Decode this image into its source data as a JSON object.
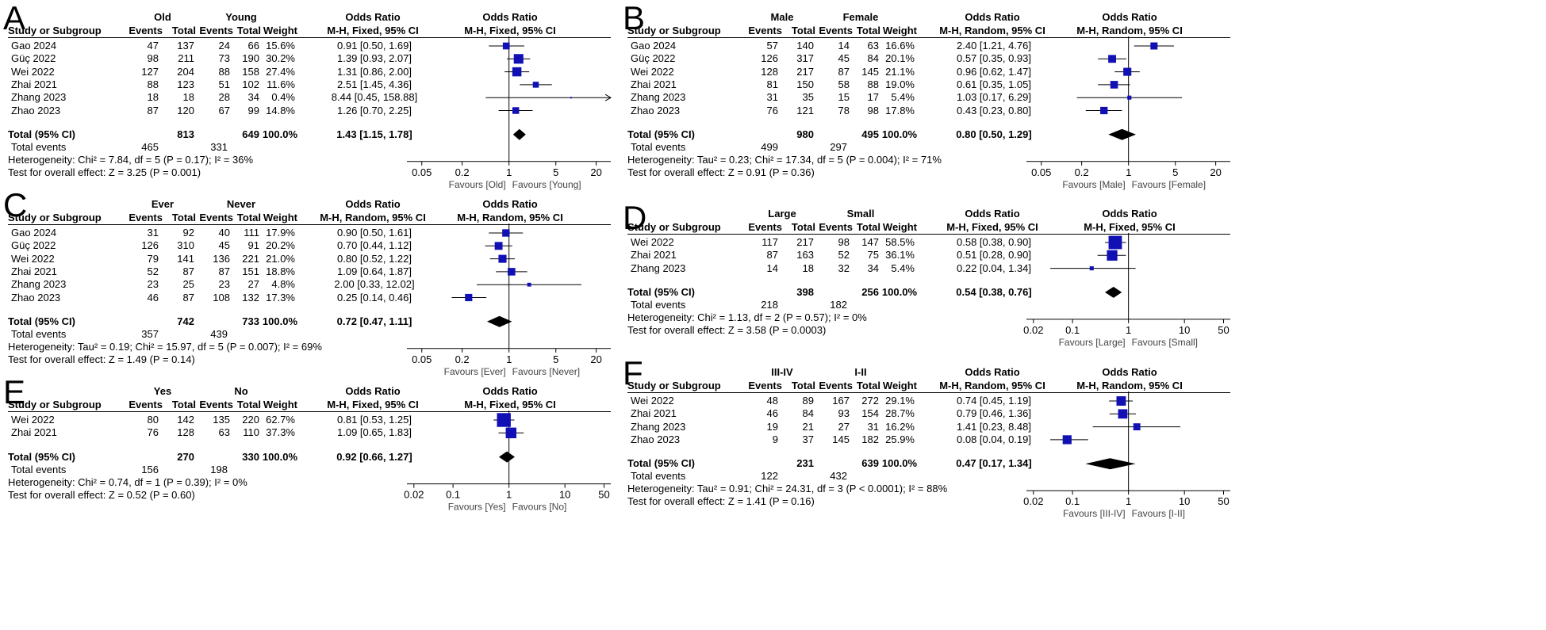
{
  "headers": {
    "study": "Study or Subgroup",
    "events": "Events",
    "total": "Total",
    "weight": "Weight",
    "or": "Odds Ratio",
    "total_ci": "Total (95% CI)",
    "total_events": "Total events"
  },
  "chart_data": [
    {
      "label": "A",
      "type": "forest",
      "group1": "Old",
      "group2": "Young",
      "method": "M-H, Fixed, 95% CI",
      "studies": [
        {
          "name": "Gao 2024",
          "e1": "47",
          "n1": "137",
          "e2": "24",
          "n2": "66",
          "weight": "15.6%",
          "or": 0.91,
          "lo": 0.5,
          "hi": 1.69,
          "ci": "0.91 [0.50, 1.69]"
        },
        {
          "name": "Güç 2022",
          "e1": "98",
          "n1": "211",
          "e2": "73",
          "n2": "190",
          "weight": "30.2%",
          "or": 1.39,
          "lo": 0.93,
          "hi": 2.07,
          "ci": "1.39 [0.93, 2.07]"
        },
        {
          "name": "Wei 2022",
          "e1": "127",
          "n1": "204",
          "e2": "88",
          "n2": "158",
          "weight": "27.4%",
          "or": 1.31,
          "lo": 0.86,
          "hi": 2.0,
          "ci": "1.31 [0.86, 2.00]"
        },
        {
          "name": "Zhai 2021",
          "e1": "88",
          "n1": "123",
          "e2": "51",
          "n2": "102",
          "weight": "11.6%",
          "or": 2.51,
          "lo": 1.45,
          "hi": 4.36,
          "ci": "2.51 [1.45, 4.36]"
        },
        {
          "name": "Zhang 2023",
          "e1": "18",
          "n1": "18",
          "e2": "28",
          "n2": "34",
          "weight": "0.4%",
          "or": 8.44,
          "lo": 0.45,
          "hi": 158.88,
          "ci": "8.44 [0.45, 158.88]"
        },
        {
          "name": "Zhao 2023",
          "e1": "87",
          "n1": "120",
          "e2": "67",
          "n2": "99",
          "weight": "14.8%",
          "or": 1.26,
          "lo": 0.7,
          "hi": 2.25,
          "ci": "1.26 [0.70, 2.25]"
        }
      ],
      "total": {
        "n1": "813",
        "n2": "649",
        "weight": "100.0%",
        "or": 1.43,
        "lo": 1.15,
        "hi": 1.78,
        "ci": "1.43 [1.15, 1.78]"
      },
      "total_events": {
        "e1": "465",
        "e2": "331"
      },
      "heterogeneity": "Heterogeneity: Chi² = 7.84, df = 5 (P = 0.17); I² = 36%",
      "overall": "Test for overall effect: Z = 3.25 (P = 0.001)",
      "ticks": [
        0.05,
        0.2,
        1,
        5,
        20
      ],
      "tick_labels": [
        "0.05",
        "0.2",
        "1",
        "5",
        "20"
      ],
      "xlim": [
        0.03,
        33
      ],
      "favours_left": "Favours [Old]",
      "favours_right": "Favours [Young]"
    },
    {
      "label": "B",
      "type": "forest",
      "group1": "Male",
      "group2": "Female",
      "method": "M-H, Random, 95% CI",
      "studies": [
        {
          "name": "Gao 2024",
          "e1": "57",
          "n1": "140",
          "e2": "14",
          "n2": "63",
          "weight": "16.6%",
          "or": 2.4,
          "lo": 1.21,
          "hi": 4.76,
          "ci": "2.40 [1.21, 4.76]"
        },
        {
          "name": "Güç 2022",
          "e1": "126",
          "n1": "317",
          "e2": "45",
          "n2": "84",
          "weight": "20.1%",
          "or": 0.57,
          "lo": 0.35,
          "hi": 0.93,
          "ci": "0.57 [0.35, 0.93]"
        },
        {
          "name": "Wei 2022",
          "e1": "128",
          "n1": "217",
          "e2": "87",
          "n2": "145",
          "weight": "21.1%",
          "or": 0.96,
          "lo": 0.62,
          "hi": 1.47,
          "ci": "0.96 [0.62, 1.47]"
        },
        {
          "name": "Zhai 2021",
          "e1": "81",
          "n1": "150",
          "e2": "58",
          "n2": "88",
          "weight": "19.0%",
          "or": 0.61,
          "lo": 0.35,
          "hi": 1.05,
          "ci": "0.61 [0.35, 1.05]"
        },
        {
          "name": "Zhang 2023",
          "e1": "31",
          "n1": "35",
          "e2": "15",
          "n2": "17",
          "weight": "5.4%",
          "or": 1.03,
          "lo": 0.17,
          "hi": 6.29,
          "ci": "1.03 [0.17, 6.29]"
        },
        {
          "name": "Zhao 2023",
          "e1": "76",
          "n1": "121",
          "e2": "78",
          "n2": "98",
          "weight": "17.8%",
          "or": 0.43,
          "lo": 0.23,
          "hi": 0.8,
          "ci": "0.43 [0.23, 0.80]"
        }
      ],
      "total": {
        "n1": "980",
        "n2": "495",
        "weight": "100.0%",
        "or": 0.8,
        "lo": 0.5,
        "hi": 1.29,
        "ci": "0.80 [0.50, 1.29]"
      },
      "total_events": {
        "e1": "499",
        "e2": "297"
      },
      "heterogeneity": "Heterogeneity: Tau² = 0.23; Chi² = 17.34, df = 5 (P = 0.004); I² = 71%",
      "overall": "Test for overall effect: Z = 0.91 (P = 0.36)",
      "ticks": [
        0.05,
        0.2,
        1,
        5,
        20
      ],
      "tick_labels": [
        "0.05",
        "0.2",
        "1",
        "5",
        "20"
      ],
      "xlim": [
        0.03,
        33
      ],
      "favours_left": "Favours [Male]",
      "favours_right": "Favours [Female]"
    },
    {
      "label": "C",
      "type": "forest",
      "group1": "Ever",
      "group2": "Never",
      "method": "M-H, Random, 95% CI",
      "studies": [
        {
          "name": "Gao 2024",
          "e1": "31",
          "n1": "92",
          "e2": "40",
          "n2": "111",
          "weight": "17.9%",
          "or": 0.9,
          "lo": 0.5,
          "hi": 1.61,
          "ci": "0.90 [0.50, 1.61]"
        },
        {
          "name": "Güç 2022",
          "e1": "126",
          "n1": "310",
          "e2": "45",
          "n2": "91",
          "weight": "20.2%",
          "or": 0.7,
          "lo": 0.44,
          "hi": 1.12,
          "ci": "0.70 [0.44, 1.12]"
        },
        {
          "name": "Wei 2022",
          "e1": "79",
          "n1": "141",
          "e2": "136",
          "n2": "221",
          "weight": "21.0%",
          "or": 0.8,
          "lo": 0.52,
          "hi": 1.22,
          "ci": "0.80 [0.52, 1.22]"
        },
        {
          "name": "Zhai 2021",
          "e1": "52",
          "n1": "87",
          "e2": "87",
          "n2": "151",
          "weight": "18.8%",
          "or": 1.09,
          "lo": 0.64,
          "hi": 1.87,
          "ci": "1.09 [0.64, 1.87]"
        },
        {
          "name": "Zhang 2023",
          "e1": "23",
          "n1": "25",
          "e2": "23",
          "n2": "27",
          "weight": "4.8%",
          "or": 2.0,
          "lo": 0.33,
          "hi": 12.02,
          "ci": "2.00 [0.33, 12.02]"
        },
        {
          "name": "Zhao 2023",
          "e1": "46",
          "n1": "87",
          "e2": "108",
          "n2": "132",
          "weight": "17.3%",
          "or": 0.25,
          "lo": 0.14,
          "hi": 0.46,
          "ci": "0.25 [0.14, 0.46]"
        }
      ],
      "total": {
        "n1": "742",
        "n2": "733",
        "weight": "100.0%",
        "or": 0.72,
        "lo": 0.47,
        "hi": 1.11,
        "ci": "0.72 [0.47, 1.11]"
      },
      "total_events": {
        "e1": "357",
        "e2": "439"
      },
      "heterogeneity": "Heterogeneity: Tau² = 0.19; Chi² = 15.97, df = 5 (P = 0.007); I² = 69%",
      "overall": "Test for overall effect: Z = 1.49 (P = 0.14)",
      "ticks": [
        0.05,
        0.2,
        1,
        5,
        20
      ],
      "tick_labels": [
        "0.05",
        "0.2",
        "1",
        "5",
        "20"
      ],
      "xlim": [
        0.03,
        33
      ],
      "favours_left": "Favours [Ever]",
      "favours_right": "Favours [Never]"
    },
    {
      "label": "D",
      "type": "forest",
      "group1": "Large",
      "group2": "Small",
      "method": "M-H, Fixed, 95% CI",
      "studies": [
        {
          "name": "Wei 2022",
          "e1": "117",
          "n1": "217",
          "e2": "98",
          "n2": "147",
          "weight": "58.5%",
          "or": 0.58,
          "lo": 0.38,
          "hi": 0.9,
          "ci": "0.58 [0.38, 0.90]"
        },
        {
          "name": "Zhai 2021",
          "e1": "87",
          "n1": "163",
          "e2": "52",
          "n2": "75",
          "weight": "36.1%",
          "or": 0.51,
          "lo": 0.28,
          "hi": 0.9,
          "ci": "0.51 [0.28, 0.90]"
        },
        {
          "name": "Zhang 2023",
          "e1": "14",
          "n1": "18",
          "e2": "32",
          "n2": "34",
          "weight": "5.4%",
          "or": 0.22,
          "lo": 0.04,
          "hi": 1.34,
          "ci": "0.22 [0.04, 1.34]"
        }
      ],
      "total": {
        "n1": "398",
        "n2": "256",
        "weight": "100.0%",
        "or": 0.54,
        "lo": 0.38,
        "hi": 0.76,
        "ci": "0.54 [0.38, 0.76]"
      },
      "total_events": {
        "e1": "218",
        "e2": "182"
      },
      "heterogeneity": "Heterogeneity: Chi² = 1.13, df = 2 (P = 0.57); I² = 0%",
      "overall": "Test for overall effect: Z = 3.58 (P = 0.0003)",
      "ticks": [
        0.02,
        0.1,
        1,
        10,
        50
      ],
      "tick_labels": [
        "0.02",
        "0.1",
        "1",
        "10",
        "50"
      ],
      "xlim": [
        0.015,
        66
      ],
      "favours_left": "Favours [Large]",
      "favours_right": "Favours [Small]"
    },
    {
      "label": "E",
      "type": "forest",
      "group1": "Yes",
      "group2": "No",
      "method": "M-H, Fixed, 95% CI",
      "studies": [
        {
          "name": "Wei 2022",
          "e1": "80",
          "n1": "142",
          "e2": "135",
          "n2": "220",
          "weight": "62.7%",
          "or": 0.81,
          "lo": 0.53,
          "hi": 1.25,
          "ci": "0.81 [0.53, 1.25]"
        },
        {
          "name": "Zhai 2021",
          "e1": "76",
          "n1": "128",
          "e2": "63",
          "n2": "110",
          "weight": "37.3%",
          "or": 1.09,
          "lo": 0.65,
          "hi": 1.83,
          "ci": "1.09 [0.65, 1.83]"
        }
      ],
      "total": {
        "n1": "270",
        "n2": "330",
        "weight": "100.0%",
        "or": 0.92,
        "lo": 0.66,
        "hi": 1.27,
        "ci": "0.92 [0.66, 1.27]"
      },
      "total_events": {
        "e1": "156",
        "e2": "198"
      },
      "heterogeneity": "Heterogeneity: Chi² = 0.74, df = 1 (P = 0.39); I² = 0%",
      "overall": "Test for overall effect: Z = 0.52 (P = 0.60)",
      "ticks": [
        0.02,
        0.1,
        1,
        10,
        50
      ],
      "tick_labels": [
        "0.02",
        "0.1",
        "1",
        "10",
        "50"
      ],
      "xlim": [
        0.015,
        66
      ],
      "favours_left": "Favours [Yes]",
      "favours_right": "Favours [No]"
    },
    {
      "label": "F",
      "type": "forest",
      "group1": "III-IV",
      "group2": "I-II",
      "method": "M-H, Random, 95% CI",
      "studies": [
        {
          "name": "Wei 2022",
          "e1": "48",
          "n1": "89",
          "e2": "167",
          "n2": "272",
          "weight": "29.1%",
          "or": 0.74,
          "lo": 0.45,
          "hi": 1.19,
          "ci": "0.74 [0.45, 1.19]"
        },
        {
          "name": "Zhai 2021",
          "e1": "46",
          "n1": "84",
          "e2": "93",
          "n2": "154",
          "weight": "28.7%",
          "or": 0.79,
          "lo": 0.46,
          "hi": 1.36,
          "ci": "0.79 [0.46, 1.36]"
        },
        {
          "name": "Zhang 2023",
          "e1": "19",
          "n1": "21",
          "e2": "27",
          "n2": "31",
          "weight": "16.2%",
          "or": 1.41,
          "lo": 0.23,
          "hi": 8.48,
          "ci": "1.41 [0.23, 8.48]"
        },
        {
          "name": "Zhao 2023",
          "e1": "9",
          "n1": "37",
          "e2": "145",
          "n2": "182",
          "weight": "25.9%",
          "or": 0.08,
          "lo": 0.04,
          "hi": 0.19,
          "ci": "0.08 [0.04, 0.19]"
        }
      ],
      "total": {
        "n1": "231",
        "n2": "639",
        "weight": "100.0%",
        "or": 0.47,
        "lo": 0.17,
        "hi": 1.34,
        "ci": "0.47 [0.17, 1.34]"
      },
      "total_events": {
        "e1": "122",
        "e2": "432"
      },
      "heterogeneity": "Heterogeneity: Tau² = 0.91; Chi² = 24.31, df = 3 (P < 0.0001); I² = 88%",
      "overall": "Test for overall effect: Z = 1.41 (P = 0.16)",
      "ticks": [
        0.02,
        0.1,
        1,
        10,
        50
      ],
      "tick_labels": [
        "0.02",
        "0.1",
        "1",
        "10",
        "50"
      ],
      "xlim": [
        0.015,
        66
      ],
      "favours_left": "Favours [III-IV]",
      "favours_right": "Favours [I-II]"
    }
  ]
}
